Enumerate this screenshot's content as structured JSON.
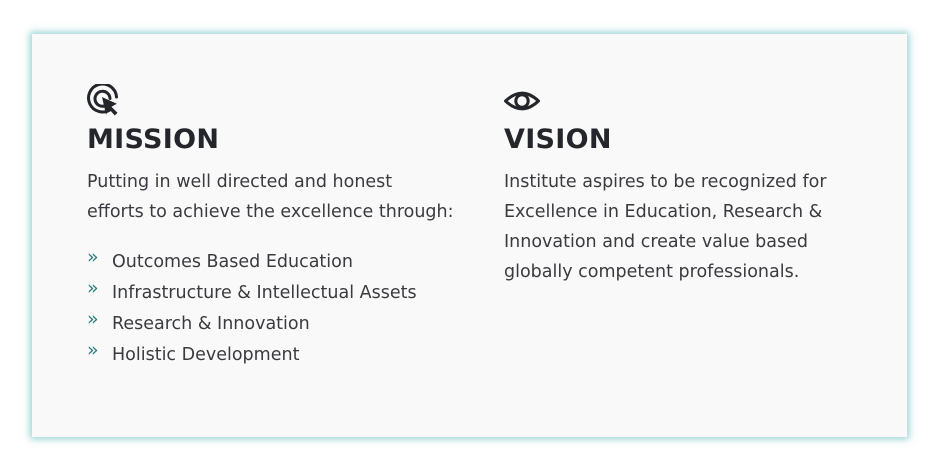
{
  "mission": {
    "icon": "target-cursor-icon",
    "title": "MISSION",
    "intro_line1": "Putting in well directed and honest",
    "intro_line2": "efforts to achieve the excellence through:",
    "items": [
      {
        "bullet": "»",
        "label": "Outcomes Based Education"
      },
      {
        "bullet": "»",
        "label": "Infrastructure & Intellectual Assets"
      },
      {
        "bullet": "»",
        "label": "Research & Innovation"
      },
      {
        "bullet": "»",
        "label": "Holistic Development"
      }
    ]
  },
  "vision": {
    "icon": "eye-icon",
    "title": "VISION",
    "line1": "Institute aspires to be recognized for",
    "line2": "Excellence in Education, Research &",
    "line3": "Innovation and create value based",
    "line4": "globally competent professionals."
  },
  "colors": {
    "accent": "#2b7f7f",
    "card_background": "#f9f9f9",
    "card_glow": "#40aaaa",
    "heading": "#25262b",
    "text": "#3a3b40"
  }
}
